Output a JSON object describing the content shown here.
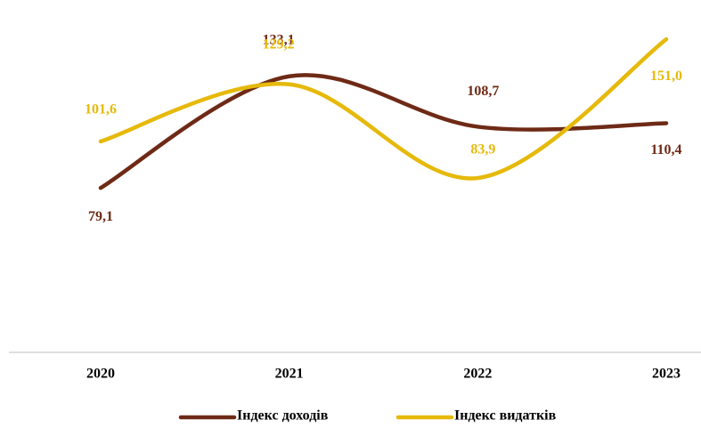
{
  "chart_data": {
    "type": "line",
    "categories": [
      "2020",
      "2021",
      "2022",
      "2023"
    ],
    "series": [
      {
        "name": "Індекс доходів",
        "color": "#6e2a16",
        "values": [
          79.1,
          133.1,
          108.7,
          110.4
        ],
        "value_labels": [
          "79,1",
          "133,1",
          "108,7",
          "110,4"
        ]
      },
      {
        "name": "Індекс видатків",
        "color": "#e6b90a",
        "values": [
          101.6,
          129.2,
          83.9,
          151.0
        ],
        "value_labels": [
          "101,6",
          "129,2",
          "83,9",
          "151,0"
        ]
      }
    ],
    "ylim": [
      0,
      170
    ],
    "smooth": true,
    "legend": "bottom"
  }
}
